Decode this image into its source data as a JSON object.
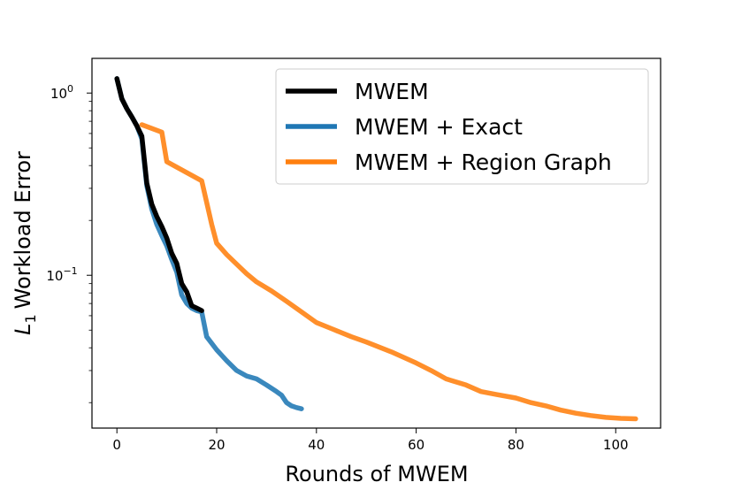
{
  "chart_data": {
    "type": "line",
    "title": "",
    "xlabel": "Rounds of MWEM",
    "ylabel": "Workload Error",
    "ylabel_symbol": "L",
    "ylabel_subscript": "1",
    "yscale": "log",
    "xlim": [
      -5,
      109
    ],
    "ylim": [
      0.0145,
      1.55
    ],
    "x_ticks": [
      0,
      20,
      40,
      60,
      80,
      100
    ],
    "x_tick_labels": [
      "0",
      "20",
      "40",
      "60",
      "80",
      "100"
    ],
    "y_ticks": [
      1.0,
      0.1
    ],
    "y_tick_labels": [
      {
        "base": "10",
        "exp": "0"
      },
      {
        "base": "10",
        "exp": "−1"
      }
    ],
    "legend_position": "upper right",
    "grid": false,
    "series": [
      {
        "name": "MWEM",
        "color": "#000000",
        "x": [
          0,
          1,
          2,
          3,
          4,
          5,
          6,
          7,
          8,
          9,
          10,
          11,
          12,
          13,
          14,
          15,
          16,
          17
        ],
        "y": [
          1.2,
          0.93,
          0.82,
          0.74,
          0.66,
          0.58,
          0.32,
          0.245,
          0.21,
          0.185,
          0.16,
          0.132,
          0.116,
          0.09,
          0.081,
          0.068,
          0.066,
          0.064
        ]
      },
      {
        "name": "MWEM + Exact",
        "color": "#1f77b4",
        "x": [
          0,
          1,
          2,
          3,
          4,
          5,
          6,
          7,
          8,
          9,
          10,
          11,
          12,
          13,
          14,
          15,
          16,
          17,
          18,
          20,
          22,
          24,
          26,
          28,
          30,
          32,
          33,
          34,
          35,
          36,
          37
        ],
        "y": [
          1.2,
          0.93,
          0.82,
          0.74,
          0.66,
          0.56,
          0.31,
          0.23,
          0.19,
          0.165,
          0.145,
          0.122,
          0.104,
          0.078,
          0.07,
          0.066,
          0.064,
          0.063,
          0.046,
          0.039,
          0.034,
          0.03,
          0.028,
          0.027,
          0.025,
          0.023,
          0.022,
          0.02,
          0.0192,
          0.0188,
          0.0185
        ]
      },
      {
        "name": "MWEM + Region Graph",
        "color": "#ff7f0e",
        "x": [
          5,
          9,
          10,
          17,
          19,
          20,
          22,
          24,
          26,
          28,
          31,
          34,
          37,
          40,
          43,
          47,
          50,
          55,
          60,
          63,
          66,
          70,
          73,
          76,
          80,
          83,
          86,
          89,
          92,
          95,
          98,
          101,
          104
        ],
        "y": [
          0.67,
          0.61,
          0.42,
          0.33,
          0.19,
          0.15,
          0.13,
          0.115,
          0.102,
          0.092,
          0.082,
          0.072,
          0.063,
          0.055,
          0.051,
          0.046,
          0.043,
          0.038,
          0.033,
          0.03,
          0.027,
          0.025,
          0.023,
          0.0222,
          0.0212,
          0.02,
          0.0192,
          0.0182,
          0.0175,
          0.017,
          0.0166,
          0.0164,
          0.0163
        ]
      }
    ]
  }
}
